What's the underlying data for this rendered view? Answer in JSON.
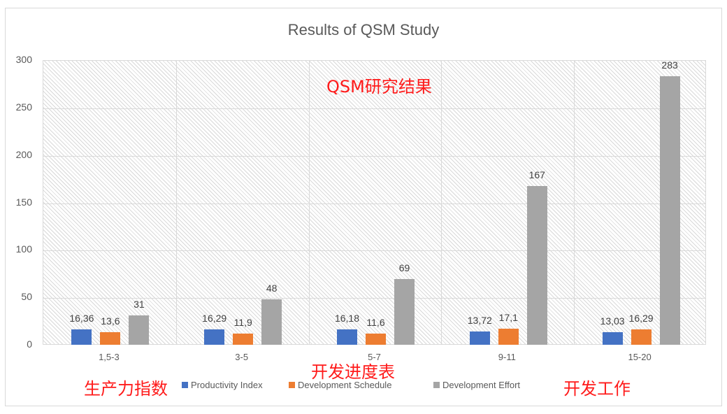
{
  "chart_data": {
    "type": "bar",
    "title": "Results of QSM Study",
    "xlabel": "",
    "ylabel": "",
    "ylim": [
      0,
      300
    ],
    "yticks": [
      0,
      50,
      100,
      150,
      200,
      250,
      300
    ],
    "grid": true,
    "legend_position": "bottom",
    "categories": [
      "1,5-3",
      "3-5",
      "5-7",
      "9-11",
      "15-20"
    ],
    "series": [
      {
        "name": "Productivity Index",
        "color": "#4472c4",
        "values": [
          16.36,
          16.29,
          16.18,
          13.72,
          13.03
        ],
        "labels": [
          "16,36",
          "16,29",
          "16,18",
          "13,72",
          "13,03"
        ]
      },
      {
        "name": "Development Schedule",
        "color": "#ed7d31",
        "values": [
          13.6,
          11.9,
          11.6,
          17.1,
          16.29
        ],
        "labels": [
          "13,6",
          "11,9",
          "11,6",
          "17,1",
          "16,29"
        ]
      },
      {
        "name": "Development Effort",
        "color": "#a5a5a5",
        "values": [
          31,
          48,
          69,
          167,
          283
        ],
        "labels": [
          "31",
          "48",
          "69",
          "167",
          "283"
        ]
      }
    ],
    "annotations": [
      {
        "text": "QSM研究结果",
        "color": "#ff1a1a"
      },
      {
        "text": "生产力指数",
        "color": "#ff1a1a"
      },
      {
        "text": "开发进度表",
        "color": "#ff1a1a"
      },
      {
        "text": "开发工作",
        "color": "#ff1a1a"
      }
    ]
  },
  "title": "Results of QSM Study",
  "yticks": [
    "0",
    "50",
    "100",
    "150",
    "200",
    "250",
    "300"
  ],
  "xticks": [
    "1,5-3",
    "3-5",
    "5-7",
    "9-11",
    "15-20"
  ],
  "legend": {
    "items": [
      {
        "label": "Productivity Index",
        "color": "#4472c4"
      },
      {
        "label": "Development Schedule",
        "color": "#ed7d31"
      },
      {
        "label": "Development Effort",
        "color": "#a5a5a5"
      }
    ]
  },
  "annotations": {
    "title_cn": "QSM研究结果",
    "productivity_cn": "生产力指数",
    "schedule_cn": "开发进度表",
    "effort_cn": "开发工作"
  }
}
